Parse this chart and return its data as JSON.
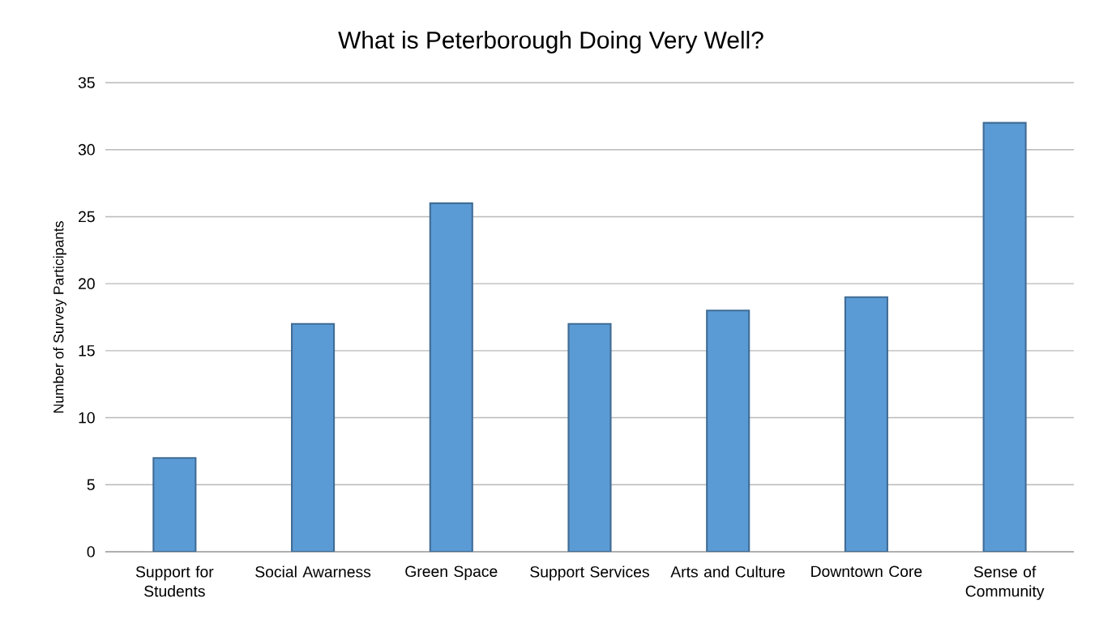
{
  "chart_data": {
    "type": "bar",
    "title": "What is Peterborough Doing Very Well?",
    "ylabel": "Number of Survey Participants",
    "categories": [
      "Support for Students",
      "Social Awarness",
      "Green Space",
      "Support Services",
      "Arts and Culture",
      "Downtown Core",
      "Sense of Community"
    ],
    "values": [
      7,
      17,
      26,
      17,
      18,
      19,
      32
    ],
    "color": "#5b9bd5",
    "ylim": [
      0,
      35
    ],
    "yticks": [
      0,
      5,
      10,
      15,
      20,
      25,
      30,
      35
    ],
    "grid": "y"
  }
}
